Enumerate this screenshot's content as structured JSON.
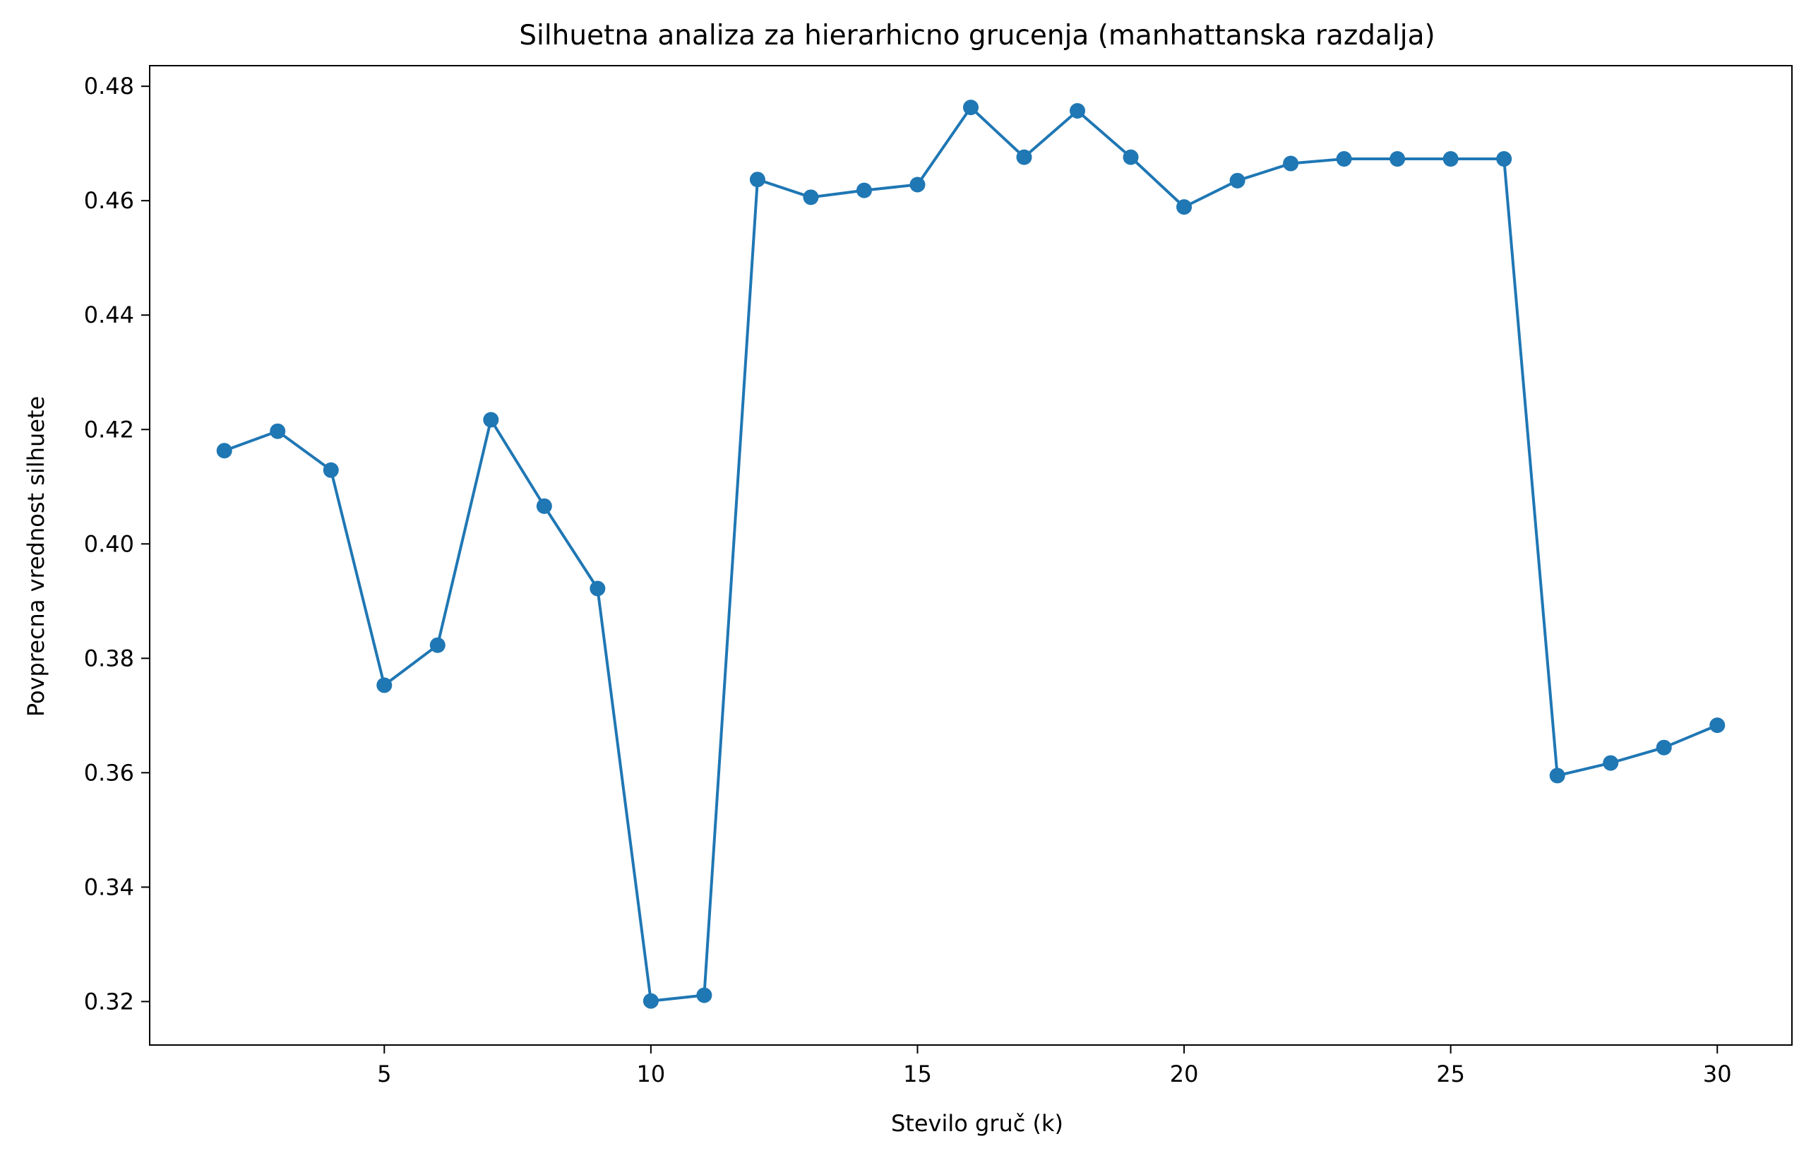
{
  "chart_data": {
    "type": "line",
    "title": "Silhuetna analiza za hierarhicno grucenja (manhattanska razdalja)",
    "xlabel": "Stevilo gruč (k)",
    "ylabel": "Povprecna vrednost silhuete",
    "xlim": [
      0.6,
      31.4
    ],
    "ylim": [
      0.3124,
      0.4836
    ],
    "xticks": [
      5,
      10,
      15,
      20,
      25,
      30
    ],
    "yticks": [
      0.32,
      0.34,
      0.36,
      0.38,
      0.4,
      0.42,
      0.44,
      0.46,
      0.48
    ],
    "ytick_labels": [
      "0.32",
      "0.34",
      "0.36",
      "0.38",
      "0.40",
      "0.42",
      "0.44",
      "0.46",
      "0.48"
    ],
    "grid": false,
    "legend": "none",
    "series": [
      {
        "color": "#1f77b4",
        "marker": "circle",
        "x": [
          2,
          3,
          4,
          5,
          6,
          7,
          8,
          9,
          10,
          11,
          12,
          13,
          14,
          15,
          16,
          17,
          18,
          19,
          20,
          21,
          22,
          23,
          24,
          25,
          26,
          27,
          28,
          29,
          30
        ],
        "y": [
          0.4163,
          0.4197,
          0.4129,
          0.3753,
          0.3823,
          0.4217,
          0.4066,
          0.3922,
          0.3201,
          0.3211,
          0.4637,
          0.4606,
          0.4618,
          0.4628,
          0.4763,
          0.4676,
          0.4757,
          0.4676,
          0.4589,
          0.4635,
          0.4665,
          0.4673,
          0.4673,
          0.4673,
          0.4673,
          0.3595,
          0.3617,
          0.3644,
          0.3683
        ]
      }
    ]
  }
}
